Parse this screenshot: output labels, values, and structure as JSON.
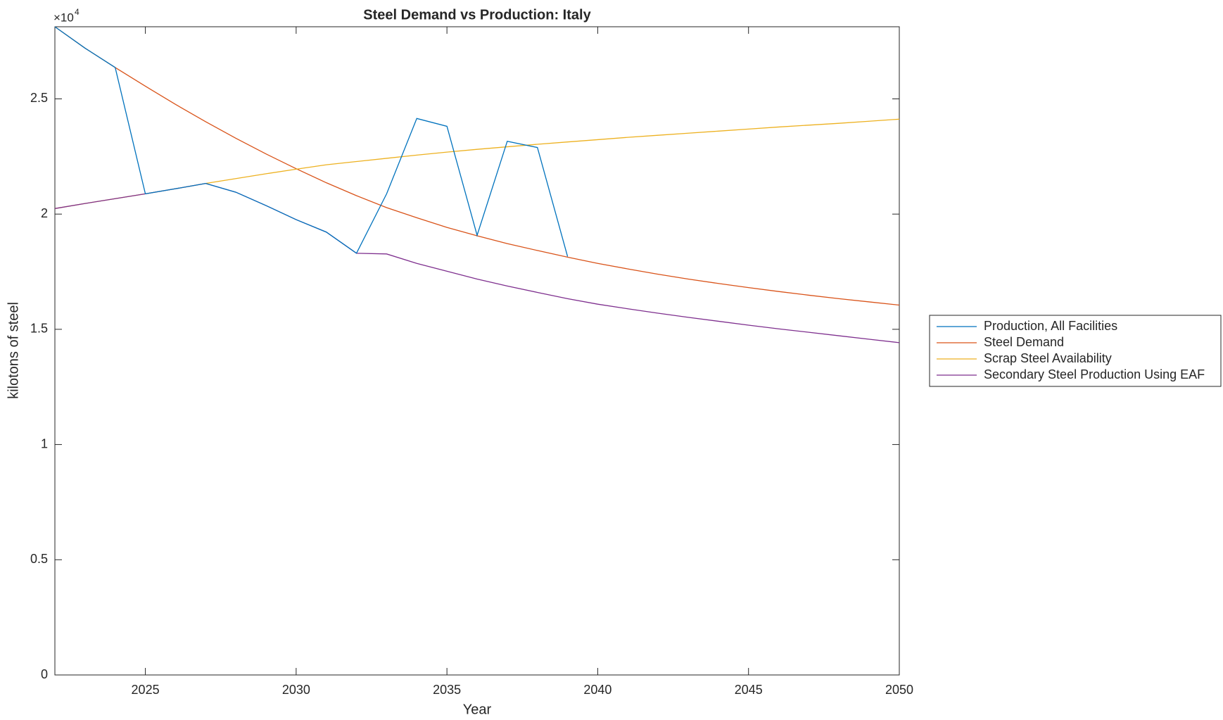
{
  "chart_data": {
    "type": "line",
    "title": "Steel Demand vs Production: Italy",
    "x_label": "Year",
    "y_label": "kilotons of steel",
    "y_exponent_base": "×10",
    "y_exponent_power": "4",
    "x": [
      2022,
      2023,
      2024,
      2025,
      2026,
      2027,
      2028,
      2029,
      2030,
      2031,
      2032,
      2033,
      2034,
      2035,
      2036,
      2037,
      2038,
      2039,
      2040,
      2041,
      2042,
      2043,
      2044,
      2045,
      2046,
      2047,
      2048,
      2049,
      2050
    ],
    "xlim": [
      2022,
      2050
    ],
    "xticks": [
      2025,
      2030,
      2035,
      2040,
      2045,
      2050
    ],
    "ylim": [
      0,
      28130
    ],
    "yticks": [
      {
        "value": 0,
        "label": "0"
      },
      {
        "value": 5000,
        "label": "0.5"
      },
      {
        "value": 10000,
        "label": "1"
      },
      {
        "value": 15000,
        "label": "1.5"
      },
      {
        "value": 20000,
        "label": "2"
      },
      {
        "value": 25000,
        "label": "2.5"
      }
    ],
    "legend_position": "outside-right",
    "series": [
      {
        "name": "Production, All Facilities",
        "color": "#0072BD",
        "values": [
          28130,
          27200,
          26360,
          20880,
          21100,
          21330,
          20950,
          20370,
          19760,
          19220,
          18300,
          20880,
          24150,
          23810,
          19080,
          23160,
          22890,
          18160,
          null,
          null,
          null,
          null,
          null,
          null,
          null,
          null,
          null,
          null,
          null
        ]
      },
      {
        "name": "Steel Demand",
        "color": "#D95319",
        "values": [
          28130,
          27200,
          26360,
          25550,
          24760,
          24010,
          23290,
          22610,
          21970,
          21360,
          20800,
          20280,
          19840,
          19420,
          19060,
          18720,
          18420,
          18130,
          17860,
          17620,
          17390,
          17180,
          16990,
          16810,
          16640,
          16480,
          16330,
          16190,
          16050
        ]
      },
      {
        "name": "Scrap Steel Availability",
        "color": "#EDB120",
        "values": [
          20240,
          20460,
          20670,
          20880,
          21100,
          21330,
          21540,
          21750,
          21950,
          22140,
          22280,
          22420,
          22560,
          22690,
          22810,
          22920,
          23030,
          23130,
          23230,
          23330,
          23420,
          23510,
          23600,
          23690,
          23780,
          23860,
          23940,
          24030,
          24120
        ]
      },
      {
        "name": "Secondary Steel Production Using EAF",
        "color": "#7E2F8E",
        "values": [
          20240,
          20460,
          20670,
          20880,
          21100,
          21330,
          20950,
          20370,
          19760,
          19220,
          18300,
          18270,
          17860,
          17520,
          17180,
          16880,
          16600,
          16330,
          16090,
          15890,
          15700,
          15520,
          15350,
          15180,
          15020,
          14870,
          14720,
          14570,
          14420
        ]
      }
    ]
  }
}
